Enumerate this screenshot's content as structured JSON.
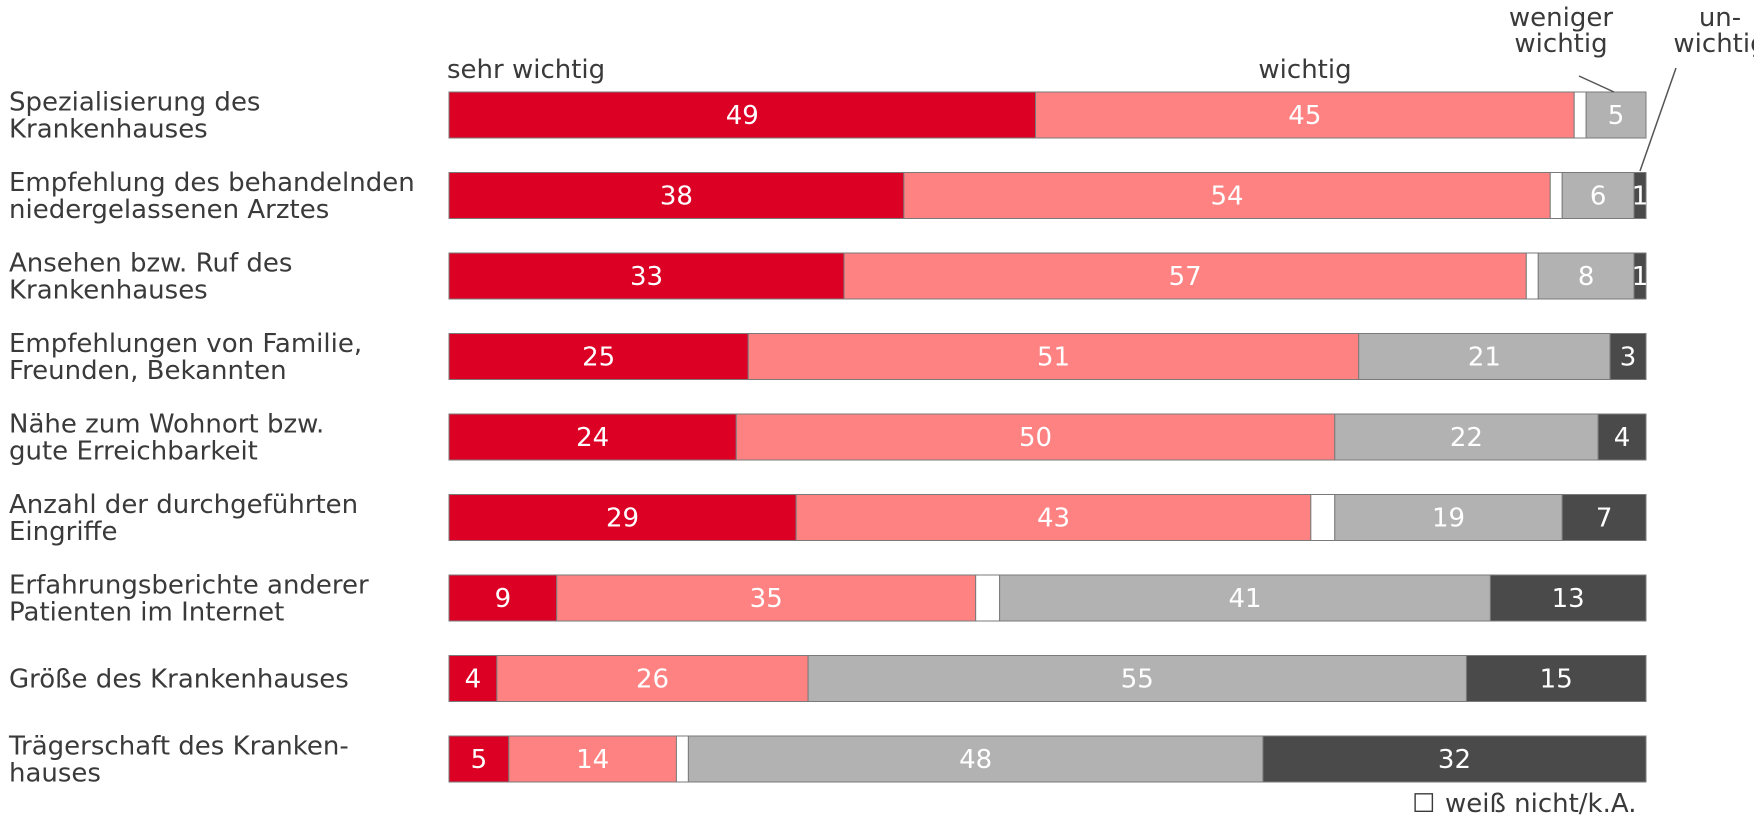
{
  "chart_data": {
    "type": "bar",
    "orientation": "horizontal",
    "stacked": true,
    "categories": [
      [
        "Spezialisierung des",
        "Krankenhauses"
      ],
      [
        "Empfehlung des behandelnden",
        "niedergelassenen Arztes"
      ],
      [
        "Ansehen bzw. Ruf des",
        "Krankenhauses"
      ],
      [
        "Empfehlungen von Familie,",
        "Freunden, Bekannten"
      ],
      [
        "Nähe zum Wohnort bzw.",
        "gute Erreichbarkeit"
      ],
      [
        "Anzahl der durchgeführten",
        "Eingriffe"
      ],
      [
        "Erfahrungsberichte anderer",
        "Patienten im Internet"
      ],
      [
        "Größe des Krankenhauses"
      ],
      [
        "Trägerschaft des Kranken-",
        "hauses"
      ]
    ],
    "series": [
      {
        "name": "sehr wichtig",
        "color": "#dc0025",
        "values": [
          49,
          38,
          33,
          25,
          24,
          29,
          9,
          4,
          5
        ]
      },
      {
        "name": "wichtig",
        "color": "#ff8282",
        "values": [
          45,
          54,
          57,
          51,
          50,
          43,
          35,
          26,
          14
        ]
      },
      {
        "name": "weiß nicht/k.A.",
        "color": "#ffffff",
        "values": [
          1,
          1,
          1,
          0,
          0,
          2,
          2,
          0,
          1
        ]
      },
      {
        "name": "weniger wichtig",
        "color": "#b2b2b2",
        "values": [
          5,
          6,
          8,
          21,
          22,
          19,
          41,
          55,
          48
        ]
      },
      {
        "name": "unwichtig",
        "color": "#4a4a4a",
        "values": [
          0,
          1,
          1,
          3,
          4,
          7,
          13,
          15,
          32
        ]
      }
    ],
    "series_header_labels": {
      "sehr_wichtig": "sehr wichtig",
      "wichtig": "wichtig",
      "weniger_wichtig": [
        "weniger",
        "wichtig"
      ],
      "unwichtig": [
        "un-",
        "wichtig"
      ]
    },
    "legend": {
      "symbol": "☐",
      "label": "weiß nicht/k.A.",
      "placement": "bottom-right"
    },
    "xlim": [
      0,
      100
    ],
    "grid": false
  }
}
